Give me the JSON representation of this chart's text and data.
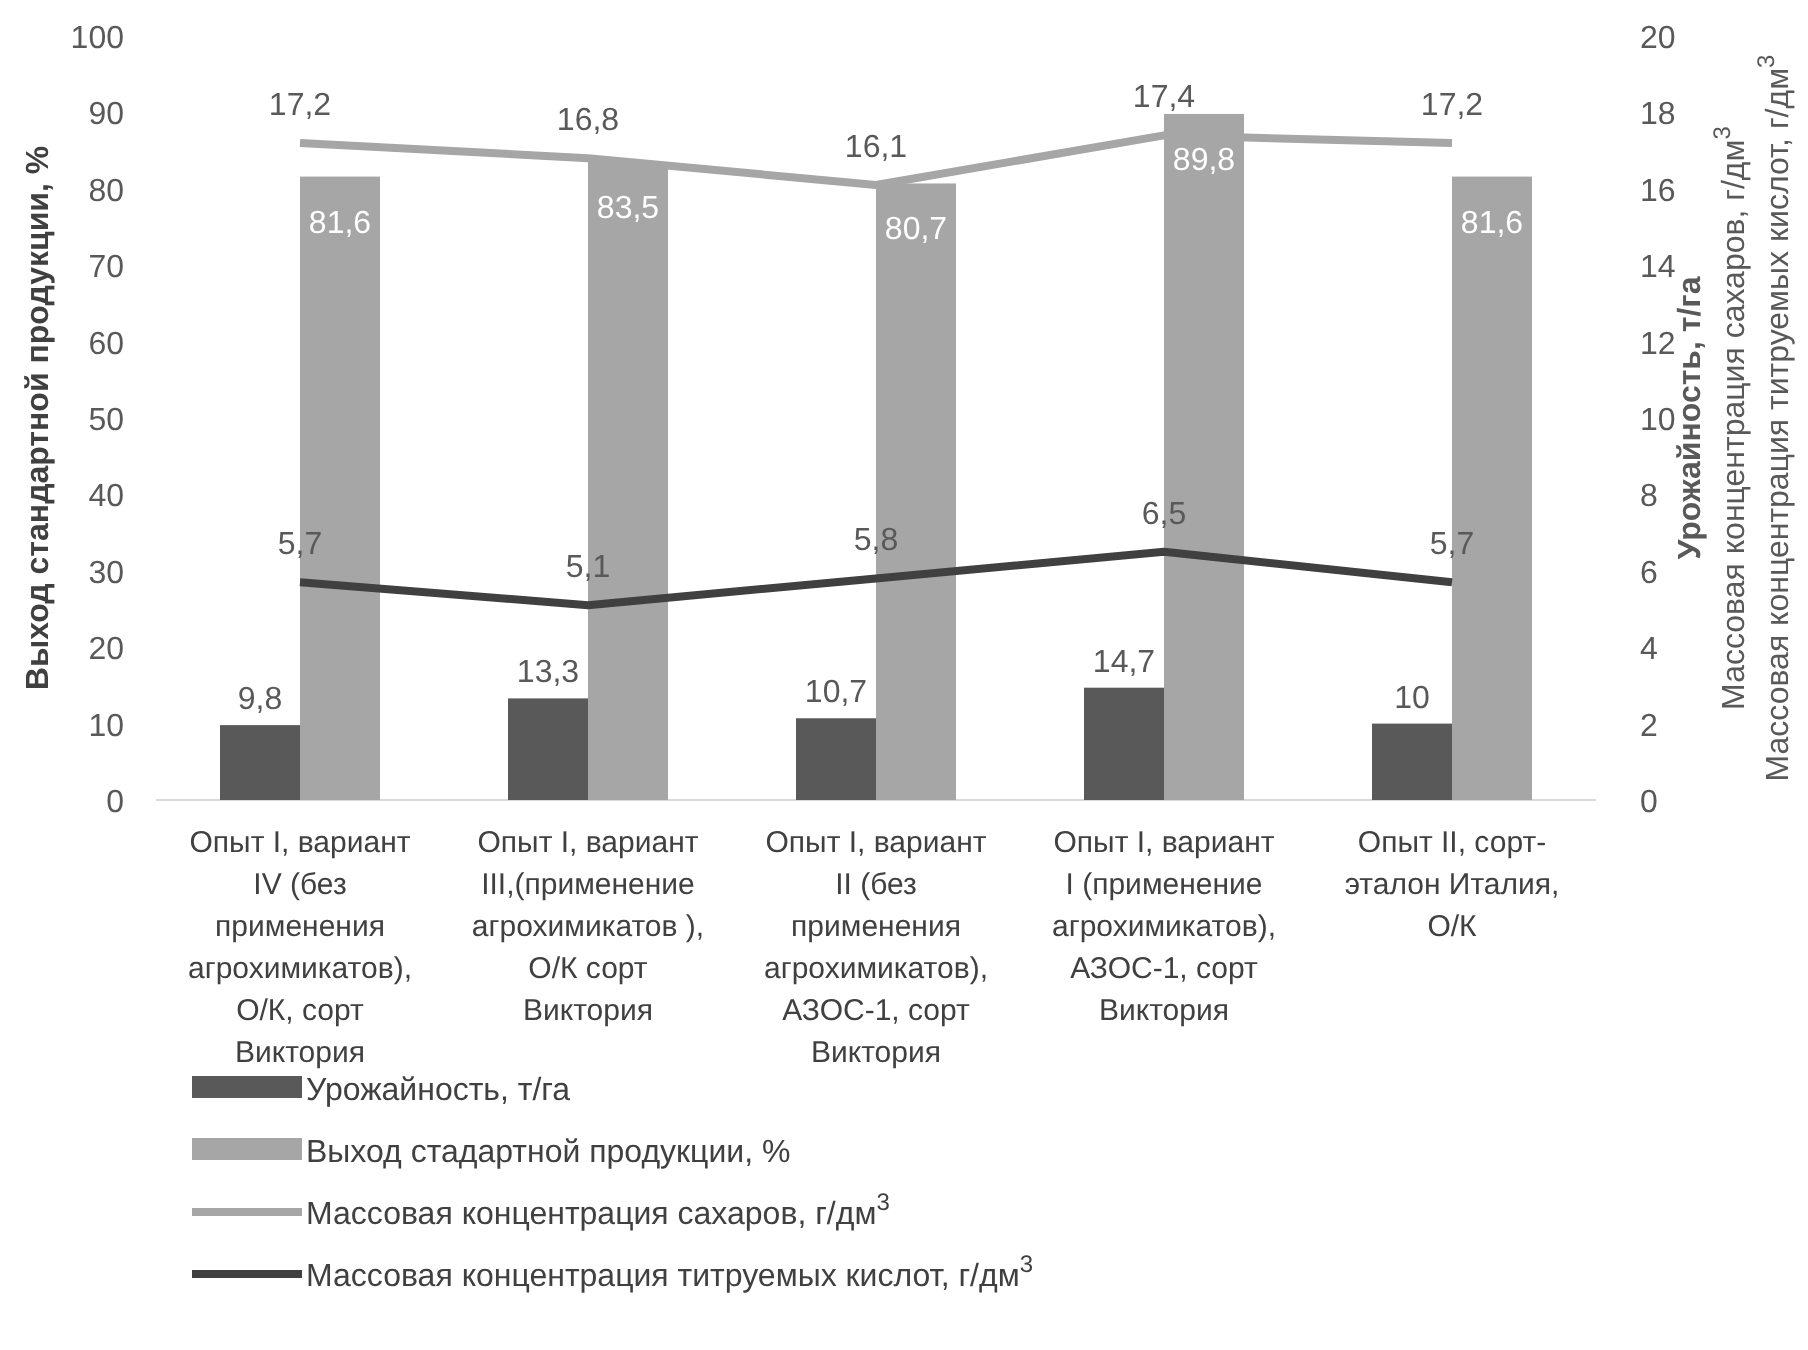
{
  "chart_data": {
    "type": "bar",
    "categories": [
      "Опыт I, вариант\nIV  (без\nприменения\nагрохимикатов),\nО/К, сорт\nВиктория",
      "Опыт I, вариант\nIII,(применение\nагрохимикатов ),\nО/К сорт\nВиктория",
      "Опыт I, вариант\nII (без\nприменения\nагрохимикатов),\nАЗОС-1, сорт\nВиктория",
      "Опыт  I, вариант\nI (применение\nагрохимикатов),\nАЗОС-1, сорт\nВиктория",
      "Опыт II, сорт-\nэталон Италия,\nО/К"
    ],
    "series": [
      {
        "name": "Урожайность, т/га",
        "color": "#595959",
        "values": [
          9.8,
          13.3,
          10.7,
          14.7,
          10
        ],
        "value_labels": [
          "9,8",
          "13,3",
          "10,7",
          "14,7",
          "10"
        ]
      },
      {
        "name": "Выход стадартной продукции, %",
        "color": "#a6a6a6",
        "values": [
          81.6,
          83.5,
          80.7,
          89.8,
          81.6
        ],
        "value_labels": [
          "81,6",
          "83,5",
          "80,7",
          "89,8",
          "81,6"
        ]
      },
      {
        "name": "Массовая концентрация сахаров, г/дм$^{3}$",
        "type": "line",
        "axis": "y2",
        "color": "#a6a6a6",
        "values": [
          17.2,
          16.8,
          16.1,
          17.4,
          17.2
        ],
        "value_labels": [
          "17,2",
          "16,8",
          "16,1",
          "17,4",
          "17,2"
        ]
      },
      {
        "name": "Массовая концентрация титруемых кислот, г/дм$^{3}$",
        "type": "line",
        "axis": "y2",
        "color": "#404040",
        "values": [
          5.7,
          5.1,
          5.8,
          6.5,
          5.7
        ],
        "value_labels": [
          "5,7",
          "5,1",
          "5,8",
          "6,5",
          "5,7"
        ]
      }
    ],
    "ylabel": "Выход стандартной продукции, %",
    "y2label": "Урожайность, т/га\nМассовая концентрация сахаров, г/дм$^{3}$\nМассовая концентрация титруемых кислот, г/дм$^{3}$",
    "ylim": [
      0,
      100
    ],
    "yticks": [
      0,
      10,
      20,
      30,
      40,
      50,
      60,
      70,
      80,
      90,
      100
    ],
    "y2lim": [
      0,
      20
    ],
    "y2ticks": [
      0,
      2,
      4,
      6,
      8,
      10,
      12,
      14,
      16,
      18,
      20
    ],
    "legend": "bottom",
    "line_style": "solid",
    "marker": "none"
  }
}
